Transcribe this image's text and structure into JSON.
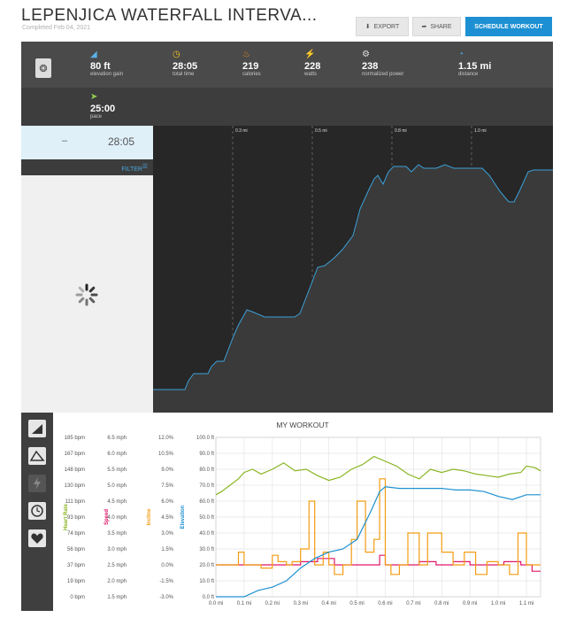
{
  "header": {
    "title": "LEPENJICA WATERFALL INTERVA...",
    "subtitle": "Completed Feb 04, 2021",
    "export_label": "EXPORT",
    "share_label": "SHARE",
    "schedule_label": "SCHEDULE WORKOUT"
  },
  "stats": [
    {
      "icon": "elevation-icon",
      "value": "80 ft",
      "label": "elevation gain"
    },
    {
      "icon": "stopwatch-icon",
      "value": "28:05",
      "label": "total time"
    },
    {
      "icon": "flame-icon",
      "value": "219",
      "label": "calories"
    },
    {
      "icon": "bolt-icon",
      "value": "228",
      "label": "watts"
    },
    {
      "icon": "dial-icon",
      "value": "238",
      "label": "normalized power"
    },
    {
      "icon": "distance-icon",
      "value": "1.15 mi",
      "label": "distance"
    },
    {
      "icon": "pace-icon",
      "value": "25:00",
      "label": "pace"
    }
  ],
  "left_panel": {
    "dash": "–",
    "time": "28:05",
    "filter_label": "FILTER"
  },
  "profile": {
    "markers": [
      "0.3 mi",
      "0.5 mi",
      "0.8 mi",
      "1.0 mi"
    ]
  },
  "chart_data": {
    "type": "line",
    "title": "MY WORKOUT",
    "x_ticks": [
      "0.0 mi",
      "0.1 mi",
      "0.2 mi",
      "0.3 mi",
      "0.4 mi",
      "0.5 mi",
      "0.6 mi",
      "0.7 mi",
      "0.8 mi",
      "0.9 mi",
      "1.0 mi",
      "1.1 mi"
    ],
    "xlim": [
      0,
      1.15
    ],
    "axes": [
      {
        "name": "Heart Rate",
        "color": "#8ab523",
        "ticks": [
          "185 bpm",
          "167 bpm",
          "148 bpm",
          "130 bpm",
          "111 bpm",
          "93 bpm",
          "74 bpm",
          "56 bpm",
          "37 bpm",
          "19 bpm",
          "0 bpm"
        ]
      },
      {
        "name": "Speed",
        "color": "#e0186a",
        "ticks": [
          "6.5 mph",
          "6.0 mph",
          "5.5 mph",
          "5.0 mph",
          "4.5 mph",
          "4.0 mph",
          "3.5 mph",
          "3.0 mph",
          "2.5 mph",
          "2.0 mph",
          "1.5 mph"
        ]
      },
      {
        "name": "Incline",
        "color": "#f39c12",
        "ticks": [
          "12.0%",
          "10.5%",
          "9.0%",
          "7.5%",
          "6.0%",
          "4.5%",
          "3.0%",
          "1.5%",
          "0.0%",
          "-1.5%",
          "-3.0%"
        ]
      },
      {
        "name": "Elevation",
        "color": "#1e90d0",
        "ticks": [
          "100.0 ft",
          "90.0 ft",
          "80.0 ft",
          "70.0 ft",
          "60.0 ft",
          "50.0 ft",
          "40.0 ft",
          "30.0 ft",
          "20.0 ft",
          "10.0 ft",
          "0.0 ft"
        ]
      }
    ],
    "ylim": [
      0,
      100
    ],
    "series": [
      {
        "name": "Heart Rate",
        "color": "#8ab523",
        "x": [
          0,
          0.02,
          0.05,
          0.08,
          0.1,
          0.13,
          0.16,
          0.2,
          0.24,
          0.28,
          0.32,
          0.36,
          0.4,
          0.44,
          0.48,
          0.52,
          0.56,
          0.6,
          0.64,
          0.68,
          0.72,
          0.76,
          0.8,
          0.84,
          0.88,
          0.92,
          0.96,
          1.0,
          1.04,
          1.08,
          1.1,
          1.13,
          1.15
        ],
        "y": [
          64,
          66,
          70,
          74,
          78,
          80,
          77,
          80,
          84,
          79,
          80,
          76,
          73,
          75,
          80,
          83,
          88,
          85,
          82,
          77,
          74,
          80,
          78,
          80,
          79,
          77,
          76,
          75,
          77,
          78,
          82,
          81,
          79
        ]
      },
      {
        "name": "Speed",
        "color": "#e0186a",
        "x": [
          0,
          0.05,
          0.1,
          0.18,
          0.22,
          0.3,
          0.36,
          0.42,
          0.5,
          0.56,
          0.58,
          0.6,
          0.66,
          0.72,
          0.78,
          0.84,
          0.9,
          0.96,
          1.02,
          1.08,
          1.1,
          1.12,
          1.15
        ],
        "y": [
          20,
          20,
          20,
          20,
          20,
          22,
          24,
          20,
          20,
          20,
          26,
          20,
          20,
          22,
          20,
          22,
          20,
          20,
          22,
          20,
          20,
          16,
          16
        ]
      },
      {
        "name": "Incline",
        "color": "#f39c12",
        "x": [
          0,
          0.06,
          0.08,
          0.1,
          0.13,
          0.16,
          0.2,
          0.22,
          0.25,
          0.27,
          0.3,
          0.33,
          0.35,
          0.38,
          0.4,
          0.42,
          0.45,
          0.48,
          0.5,
          0.53,
          0.56,
          0.58,
          0.6,
          0.62,
          0.65,
          0.68,
          0.72,
          0.75,
          0.8,
          0.84,
          0.88,
          0.92,
          0.96,
          1.0,
          1.04,
          1.07,
          1.1,
          1.15
        ],
        "y": [
          20,
          20,
          28,
          20,
          20,
          18,
          26,
          22,
          20,
          22,
          30,
          60,
          20,
          28,
          20,
          14,
          20,
          36,
          60,
          28,
          36,
          74,
          20,
          14,
          20,
          40,
          20,
          40,
          28,
          20,
          28,
          14,
          22,
          20,
          14,
          40,
          20,
          20
        ]
      },
      {
        "name": "Elevation",
        "color": "#1e90d0",
        "x": [
          0,
          0.05,
          0.1,
          0.15,
          0.2,
          0.25,
          0.3,
          0.35,
          0.4,
          0.45,
          0.5,
          0.55,
          0.58,
          0.6,
          0.65,
          0.7,
          0.75,
          0.8,
          0.85,
          0.9,
          0.95,
          1.0,
          1.05,
          1.1,
          1.15
        ],
        "y": [
          0,
          0,
          0,
          4,
          6,
          10,
          18,
          24,
          28,
          30,
          36,
          54,
          66,
          69,
          68,
          68,
          68,
          68,
          67,
          67,
          66,
          63,
          61,
          64,
          64
        ]
      }
    ]
  }
}
